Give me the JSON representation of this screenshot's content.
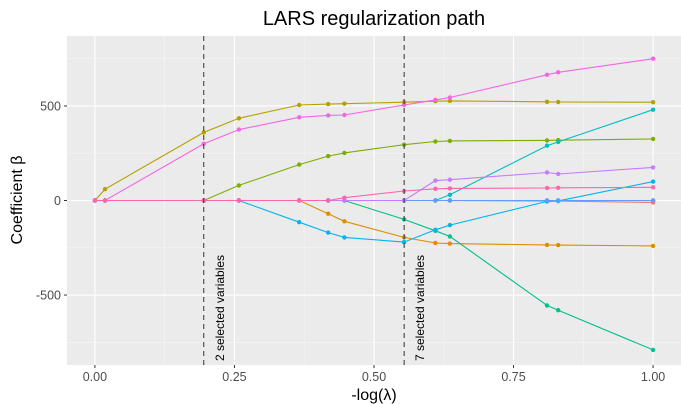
{
  "chart_data": {
    "type": "line",
    "title": "LARS regularization path",
    "xlabel": "-log(λ)",
    "ylabel": "Coefficient β",
    "xlim": [
      -0.05,
      1.05
    ],
    "ylim": [
      -870,
      870
    ],
    "x_ticks": [
      0.0,
      0.25,
      0.5,
      0.75,
      1.0
    ],
    "x_tick_labels": [
      "0.00",
      "0.25",
      "0.50",
      "0.75",
      "1.00"
    ],
    "y_ticks": [
      -500,
      0,
      500
    ],
    "y_tick_labels": [
      "-500",
      "0",
      "500"
    ],
    "grid": true,
    "legend": "none",
    "x": [
      0.0,
      0.018,
      0.195,
      0.258,
      0.366,
      0.418,
      0.447,
      0.554,
      0.61,
      0.636,
      0.81,
      0.83,
      1.0
    ],
    "series": [
      {
        "color": "#F8766D",
        "values": [
          0,
          0,
          0,
          0,
          0,
          0,
          0,
          0,
          0,
          0,
          -3,
          -3,
          -10
        ]
      },
      {
        "color": "#DE8C00",
        "values": [
          0,
          0,
          0,
          0,
          0,
          -70,
          -110,
          -195,
          -225,
          -228,
          -235,
          -236,
          -240
        ]
      },
      {
        "color": "#B79F00",
        "values": [
          0,
          60,
          360,
          435,
          505,
          510,
          512,
          520,
          525,
          527,
          522,
          521,
          520
        ]
      },
      {
        "color": "#7CAE00",
        "values": [
          0,
          0,
          0,
          80,
          190,
          235,
          252,
          295,
          312,
          315,
          318,
          319,
          325
        ]
      },
      {
        "color": "#00BA38",
        "values": [
          0,
          0,
          0,
          0,
          0,
          0,
          0,
          0,
          0,
          0,
          0,
          0,
          0
        ]
      },
      {
        "color": "#00C08B",
        "values": [
          0,
          0,
          0,
          0,
          0,
          0,
          0,
          -100,
          -160,
          -190,
          -555,
          -580,
          -790
        ]
      },
      {
        "color": "#00BFC4",
        "values": [
          0,
          0,
          0,
          0,
          0,
          0,
          0,
          0,
          0,
          30,
          290,
          310,
          480
        ]
      },
      {
        "color": "#00B4F0",
        "values": [
          0,
          0,
          0,
          0,
          -115,
          -170,
          -195,
          -220,
          -155,
          -130,
          -5,
          -2,
          100
        ]
      },
      {
        "color": "#619CFF",
        "values": [
          0,
          0,
          0,
          0,
          0,
          0,
          0,
          0,
          0,
          0,
          0,
          0,
          0
        ]
      },
      {
        "color": "#C77CFF",
        "values": [
          0,
          0,
          0,
          0,
          0,
          0,
          0,
          0,
          105,
          110,
          148,
          140,
          175
        ]
      },
      {
        "color": "#F564E3",
        "values": [
          0,
          0,
          300,
          375,
          440,
          450,
          452,
          505,
          532,
          545,
          665,
          678,
          750
        ]
      },
      {
        "color": "#FF64B0",
        "values": [
          0,
          0,
          0,
          0,
          0,
          0,
          15,
          50,
          62,
          64,
          66,
          67,
          70
        ]
      }
    ],
    "vlines": [
      {
        "x": 0.195,
        "label": "2 selected variables"
      },
      {
        "x": 0.554,
        "label": "7 selected variables"
      }
    ]
  }
}
